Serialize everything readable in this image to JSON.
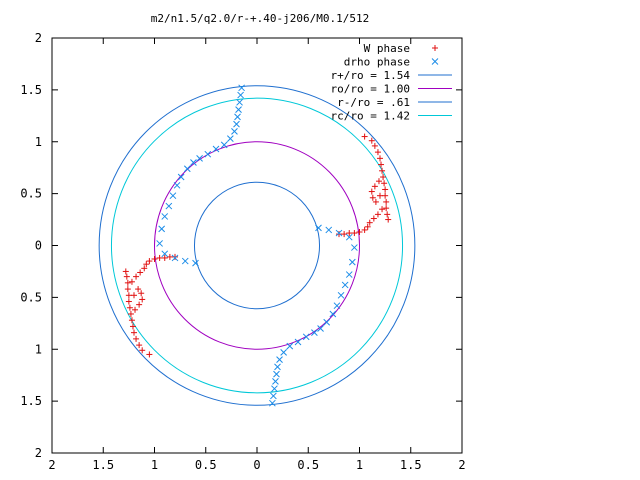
{
  "chart_data": {
    "type": "scatter",
    "title": "m2/n1.5/q2.0/r-+.40-j206/M0.1/512",
    "xlim": [
      -2,
      2
    ],
    "ylim": [
      -2,
      2
    ],
    "xticks": [
      -2,
      -1.5,
      -1,
      -0.5,
      0,
      0.5,
      1,
      1.5,
      2
    ],
    "yticks": [
      -2,
      -1.5,
      -1,
      -0.5,
      0,
      0.5,
      1,
      1.5,
      2
    ],
    "xtick_labels": [
      "2",
      "1.5",
      "1",
      "0.5",
      "0",
      "0.5",
      "1",
      "1.5",
      "2"
    ],
    "ytick_labels": [
      "2",
      "1.5",
      "1",
      "0.5",
      "0",
      "0.5",
      "1",
      "1.5",
      "2"
    ],
    "grid": false,
    "legend_position": "top-right",
    "circles": [
      {
        "name": "r+/ro = 1.54",
        "radius": 1.54,
        "color": "#1f6fcf"
      },
      {
        "name": "ro/ro = 1.00",
        "radius": 1.0,
        "color": "#a000c0"
      },
      {
        "name": "r-/ro = .61",
        "radius": 0.61,
        "color": "#1f6fcf"
      },
      {
        "name": "rc/ro = 1.42",
        "radius": 1.42,
        "color": "#00c8d8"
      }
    ],
    "phase_series": [
      {
        "name": "W phase",
        "color": "#e01010",
        "marker": "plus",
        "points": [
          [
            1.05,
            1.05
          ],
          [
            1.12,
            1.01
          ],
          [
            1.15,
            0.96
          ],
          [
            1.18,
            0.9
          ],
          [
            1.2,
            0.84
          ],
          [
            1.21,
            0.78
          ],
          [
            1.22,
            0.72
          ],
          [
            1.23,
            0.66
          ],
          [
            1.24,
            0.6
          ],
          [
            1.25,
            0.54
          ],
          [
            1.25,
            0.48
          ],
          [
            1.26,
            0.42
          ],
          [
            1.26,
            0.36
          ],
          [
            1.27,
            0.3
          ],
          [
            1.28,
            0.25
          ],
          [
            1.19,
            0.62
          ],
          [
            1.15,
            0.57
          ],
          [
            1.12,
            0.52
          ],
          [
            1.13,
            0.46
          ],
          [
            1.16,
            0.42
          ],
          [
            1.2,
            0.48
          ],
          [
            1.22,
            0.35
          ],
          [
            1.18,
            0.3
          ],
          [
            1.14,
            0.26
          ],
          [
            1.1,
            0.22
          ],
          [
            1.08,
            0.18
          ],
          [
            1.05,
            0.15
          ],
          [
            1.0,
            0.13
          ],
          [
            0.95,
            0.12
          ],
          [
            0.9,
            0.12
          ],
          [
            0.85,
            0.11
          ],
          [
            0.8,
            0.11
          ],
          [
            -1.05,
            -1.05
          ],
          [
            -1.12,
            -1.01
          ],
          [
            -1.15,
            -0.96
          ],
          [
            -1.18,
            -0.9
          ],
          [
            -1.2,
            -0.84
          ],
          [
            -1.21,
            -0.78
          ],
          [
            -1.22,
            -0.72
          ],
          [
            -1.23,
            -0.66
          ],
          [
            -1.24,
            -0.6
          ],
          [
            -1.25,
            -0.54
          ],
          [
            -1.25,
            -0.48
          ],
          [
            -1.26,
            -0.42
          ],
          [
            -1.26,
            -0.36
          ],
          [
            -1.27,
            -0.3
          ],
          [
            -1.28,
            -0.25
          ],
          [
            -1.19,
            -0.62
          ],
          [
            -1.15,
            -0.57
          ],
          [
            -1.12,
            -0.52
          ],
          [
            -1.13,
            -0.46
          ],
          [
            -1.16,
            -0.42
          ],
          [
            -1.2,
            -0.48
          ],
          [
            -1.22,
            -0.35
          ],
          [
            -1.18,
            -0.3
          ],
          [
            -1.14,
            -0.26
          ],
          [
            -1.1,
            -0.22
          ],
          [
            -1.08,
            -0.18
          ],
          [
            -1.05,
            -0.15
          ],
          [
            -1.0,
            -0.13
          ],
          [
            -0.95,
            -0.12
          ],
          [
            -0.9,
            -0.12
          ],
          [
            -0.85,
            -0.11
          ],
          [
            -0.8,
            -0.11
          ]
        ]
      },
      {
        "name": "drho phase",
        "color": "#1a8ce8",
        "marker": "cross",
        "points": [
          [
            -0.15,
            1.52
          ],
          [
            -0.16,
            1.45
          ],
          [
            -0.17,
            1.38
          ],
          [
            -0.18,
            1.31
          ],
          [
            -0.19,
            1.24
          ],
          [
            -0.2,
            1.17
          ],
          [
            -0.22,
            1.1
          ],
          [
            -0.26,
            1.03
          ],
          [
            -0.32,
            0.97
          ],
          [
            -0.4,
            0.93
          ],
          [
            -0.48,
            0.88
          ],
          [
            -0.56,
            0.84
          ],
          [
            -0.62,
            0.8
          ],
          [
            -0.68,
            0.74
          ],
          [
            -0.74,
            0.66
          ],
          [
            -0.78,
            0.58
          ],
          [
            -0.82,
            0.48
          ],
          [
            -0.86,
            0.38
          ],
          [
            -0.9,
            0.28
          ],
          [
            -0.93,
            0.16
          ],
          [
            -0.95,
            0.02
          ],
          [
            -0.9,
            -0.08
          ],
          [
            -0.8,
            -0.12
          ],
          [
            -0.7,
            -0.15
          ],
          [
            -0.6,
            -0.17
          ],
          [
            0.15,
            -1.52
          ],
          [
            0.16,
            -1.45
          ],
          [
            0.17,
            -1.38
          ],
          [
            0.18,
            -1.31
          ],
          [
            0.19,
            -1.24
          ],
          [
            0.2,
            -1.17
          ],
          [
            0.22,
            -1.1
          ],
          [
            0.26,
            -1.03
          ],
          [
            0.32,
            -0.97
          ],
          [
            0.4,
            -0.93
          ],
          [
            0.48,
            -0.88
          ],
          [
            0.56,
            -0.84
          ],
          [
            0.62,
            -0.8
          ],
          [
            0.68,
            -0.74
          ],
          [
            0.74,
            -0.66
          ],
          [
            0.78,
            -0.58
          ],
          [
            0.82,
            -0.48
          ],
          [
            0.86,
            -0.38
          ],
          [
            0.9,
            -0.28
          ],
          [
            0.93,
            -0.16
          ],
          [
            0.95,
            -0.02
          ],
          [
            0.9,
            0.08
          ],
          [
            0.8,
            0.12
          ],
          [
            0.7,
            0.15
          ],
          [
            0.6,
            0.17
          ]
        ]
      }
    ]
  }
}
